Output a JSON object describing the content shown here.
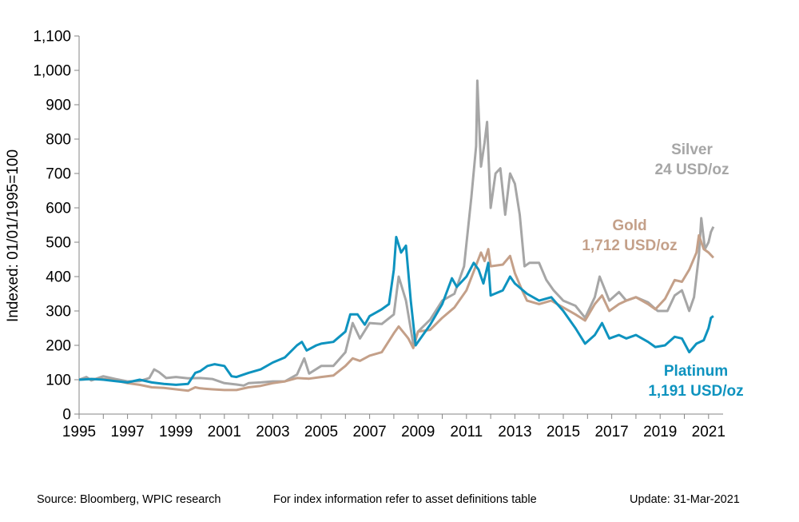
{
  "chart_data": {
    "type": "line",
    "ylabel": "Indexed: 01/01/1995=100",
    "xlim": [
      1995,
      2021.6
    ],
    "ylim": [
      0,
      1100
    ],
    "x_ticks": [
      "1995",
      "1997",
      "1999",
      "2001",
      "2003",
      "2005",
      "2007",
      "2009",
      "2011",
      "2013",
      "2015",
      "2017",
      "2019",
      "2021"
    ],
    "y_ticks": [
      "0",
      "100",
      "200",
      "300",
      "400",
      "500",
      "600",
      "700",
      "800",
      "900",
      "1,000",
      "1,100"
    ],
    "grid": false,
    "series": [
      {
        "name": "Silver",
        "label_lines": [
          "Silver",
          "24 USD/oz"
        ],
        "color": "#a6a6a6",
        "points": [
          [
            1995,
            100
          ],
          [
            1995.3,
            108
          ],
          [
            1995.5,
            98
          ],
          [
            1996,
            110
          ],
          [
            1996.5,
            102
          ],
          [
            1997,
            95
          ],
          [
            1997.5,
            96
          ],
          [
            1997.9,
            105
          ],
          [
            1998.1,
            130
          ],
          [
            1998.3,
            122
          ],
          [
            1998.6,
            105
          ],
          [
            1999,
            108
          ],
          [
            1999.5,
            104
          ],
          [
            2000,
            105
          ],
          [
            2000.5,
            102
          ],
          [
            2001,
            90
          ],
          [
            2001.5,
            86
          ],
          [
            2001.8,
            83
          ],
          [
            2002,
            90
          ],
          [
            2002.5,
            92
          ],
          [
            2003,
            95
          ],
          [
            2003.5,
            95
          ],
          [
            2004,
            115
          ],
          [
            2004.3,
            162
          ],
          [
            2004.5,
            118
          ],
          [
            2005,
            140
          ],
          [
            2005.5,
            140
          ],
          [
            2006,
            180
          ],
          [
            2006.3,
            265
          ],
          [
            2006.6,
            220
          ],
          [
            2007,
            265
          ],
          [
            2007.5,
            262
          ],
          [
            2008,
            290
          ],
          [
            2008.2,
            400
          ],
          [
            2008.5,
            330
          ],
          [
            2008.8,
            205
          ],
          [
            2009,
            240
          ],
          [
            2009.5,
            275
          ],
          [
            2010,
            330
          ],
          [
            2010.5,
            350
          ],
          [
            2010.9,
            430
          ],
          [
            2011.2,
            630
          ],
          [
            2011.4,
            780
          ],
          [
            2011.45,
            970
          ],
          [
            2011.6,
            720
          ],
          [
            2011.75,
            790
          ],
          [
            2011.85,
            850
          ],
          [
            2012,
            600
          ],
          [
            2012.2,
            700
          ],
          [
            2012.4,
            715
          ],
          [
            2012.6,
            580
          ],
          [
            2012.8,
            700
          ],
          [
            2013,
            670
          ],
          [
            2013.2,
            580
          ],
          [
            2013.4,
            430
          ],
          [
            2013.6,
            440
          ],
          [
            2014,
            440
          ],
          [
            2014.3,
            390
          ],
          [
            2014.6,
            360
          ],
          [
            2015,
            330
          ],
          [
            2015.5,
            315
          ],
          [
            2015.9,
            280
          ],
          [
            2016.3,
            340
          ],
          [
            2016.5,
            400
          ],
          [
            2016.9,
            330
          ],
          [
            2017.3,
            355
          ],
          [
            2017.6,
            330
          ],
          [
            2018,
            340
          ],
          [
            2018.5,
            325
          ],
          [
            2018.9,
            300
          ],
          [
            2019.3,
            300
          ],
          [
            2019.6,
            345
          ],
          [
            2019.9,
            360
          ],
          [
            2020.2,
            300
          ],
          [
            2020.4,
            340
          ],
          [
            2020.6,
            460
          ],
          [
            2020.7,
            570
          ],
          [
            2020.85,
            480
          ],
          [
            2021.0,
            500
          ],
          [
            2021.1,
            530
          ],
          [
            2021.2,
            545
          ]
        ]
      },
      {
        "name": "Gold",
        "label_lines": [
          "Gold",
          "1,712 USD/oz"
        ],
        "color": "#c4a089",
        "points": [
          [
            1995,
            100
          ],
          [
            1995.5,
            102
          ],
          [
            1996,
            102
          ],
          [
            1996.5,
            98
          ],
          [
            1997,
            90
          ],
          [
            1997.5,
            85
          ],
          [
            1998,
            78
          ],
          [
            1998.5,
            76
          ],
          [
            1999,
            72
          ],
          [
            1999.5,
            68
          ],
          [
            1999.8,
            78
          ],
          [
            2000,
            75
          ],
          [
            2000.5,
            72
          ],
          [
            2001,
            70
          ],
          [
            2001.5,
            70
          ],
          [
            2002,
            78
          ],
          [
            2002.5,
            82
          ],
          [
            2003,
            90
          ],
          [
            2003.5,
            95
          ],
          [
            2004,
            105
          ],
          [
            2004.5,
            103
          ],
          [
            2005,
            108
          ],
          [
            2005.5,
            112
          ],
          [
            2006,
            140
          ],
          [
            2006.3,
            162
          ],
          [
            2006.6,
            155
          ],
          [
            2007,
            170
          ],
          [
            2007.5,
            180
          ],
          [
            2008,
            235
          ],
          [
            2008.2,
            255
          ],
          [
            2008.6,
            220
          ],
          [
            2008.8,
            192
          ],
          [
            2009,
            240
          ],
          [
            2009.5,
            245
          ],
          [
            2010,
            280
          ],
          [
            2010.5,
            310
          ],
          [
            2011,
            360
          ],
          [
            2011.6,
            470
          ],
          [
            2011.75,
            445
          ],
          [
            2011.9,
            480
          ],
          [
            2012,
            430
          ],
          [
            2012.5,
            435
          ],
          [
            2012.8,
            460
          ],
          [
            2013,
            410
          ],
          [
            2013.3,
            360
          ],
          [
            2013.5,
            330
          ],
          [
            2014,
            320
          ],
          [
            2014.5,
            330
          ],
          [
            2015,
            310
          ],
          [
            2015.5,
            290
          ],
          [
            2015.9,
            272
          ],
          [
            2016.3,
            320
          ],
          [
            2016.6,
            345
          ],
          [
            2016.9,
            300
          ],
          [
            2017.3,
            320
          ],
          [
            2017.6,
            330
          ],
          [
            2018,
            340
          ],
          [
            2018.5,
            320
          ],
          [
            2018.8,
            305
          ],
          [
            2019.2,
            335
          ],
          [
            2019.6,
            390
          ],
          [
            2019.9,
            385
          ],
          [
            2020.2,
            420
          ],
          [
            2020.5,
            470
          ],
          [
            2020.6,
            520
          ],
          [
            2020.8,
            480
          ],
          [
            2021.0,
            470
          ],
          [
            2021.2,
            455
          ]
        ]
      },
      {
        "name": "Platinum",
        "label_lines": [
          "Platinum",
          "1,191 USD/oz"
        ],
        "color": "#0e93bf",
        "points": [
          [
            1995,
            100
          ],
          [
            1995.5,
            102
          ],
          [
            1996,
            100
          ],
          [
            1996.5,
            96
          ],
          [
            1997,
            92
          ],
          [
            1997.5,
            100
          ],
          [
            1998,
            92
          ],
          [
            1998.5,
            88
          ],
          [
            1999,
            85
          ],
          [
            1999.5,
            88
          ],
          [
            1999.8,
            120
          ],
          [
            2000,
            125
          ],
          [
            2000.3,
            140
          ],
          [
            2000.6,
            145
          ],
          [
            2001,
            140
          ],
          [
            2001.3,
            110
          ],
          [
            2001.5,
            108
          ],
          [
            2002,
            120
          ],
          [
            2002.5,
            130
          ],
          [
            2003,
            150
          ],
          [
            2003.5,
            165
          ],
          [
            2004,
            200
          ],
          [
            2004.2,
            210
          ],
          [
            2004.4,
            185
          ],
          [
            2004.8,
            200
          ],
          [
            2005,
            205
          ],
          [
            2005.5,
            210
          ],
          [
            2006,
            240
          ],
          [
            2006.2,
            290
          ],
          [
            2006.5,
            290
          ],
          [
            2006.8,
            260
          ],
          [
            2007,
            285
          ],
          [
            2007.5,
            305
          ],
          [
            2007.8,
            320
          ],
          [
            2008.0,
            420
          ],
          [
            2008.1,
            515
          ],
          [
            2008.3,
            470
          ],
          [
            2008.5,
            490
          ],
          [
            2008.7,
            330
          ],
          [
            2008.9,
            200
          ],
          [
            2009,
            210
          ],
          [
            2009.5,
            260
          ],
          [
            2010,
            320
          ],
          [
            2010.4,
            395
          ],
          [
            2010.6,
            370
          ],
          [
            2011,
            400
          ],
          [
            2011.3,
            440
          ],
          [
            2011.5,
            420
          ],
          [
            2011.7,
            380
          ],
          [
            2011.9,
            440
          ],
          [
            2012,
            345
          ],
          [
            2012.5,
            360
          ],
          [
            2012.8,
            400
          ],
          [
            2013,
            380
          ],
          [
            2013.5,
            350
          ],
          [
            2014,
            330
          ],
          [
            2014.5,
            340
          ],
          [
            2015,
            300
          ],
          [
            2015.5,
            250
          ],
          [
            2015.9,
            205
          ],
          [
            2016.3,
            230
          ],
          [
            2016.6,
            265
          ],
          [
            2016.9,
            220
          ],
          [
            2017.3,
            230
          ],
          [
            2017.6,
            220
          ],
          [
            2018,
            230
          ],
          [
            2018.5,
            210
          ],
          [
            2018.8,
            195
          ],
          [
            2019.2,
            200
          ],
          [
            2019.6,
            225
          ],
          [
            2019.9,
            220
          ],
          [
            2020.2,
            180
          ],
          [
            2020.5,
            205
          ],
          [
            2020.8,
            215
          ],
          [
            2021.0,
            250
          ],
          [
            2021.1,
            280
          ],
          [
            2021.2,
            285
          ]
        ]
      }
    ]
  },
  "footer": {
    "source": "Source: Bloomberg, WPIC research",
    "note": "For index information refer to asset definitions table",
    "update": "Update: 31-Mar-2021"
  }
}
